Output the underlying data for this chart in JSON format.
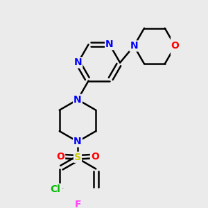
{
  "bg_color": "#ebebeb",
  "bond_color": "#000000",
  "bond_width": 1.8,
  "dbo": 0.055,
  "atom_colors": {
    "N": "#0000ff",
    "O": "#ff0000",
    "Cl": "#00bb00",
    "F": "#ff44ff",
    "S": "#cccc00"
  },
  "fs": 10,
  "fig_size": [
    3.0,
    3.0
  ],
  "dpi": 100,
  "xlim": [
    -1.4,
    1.8
  ],
  "ylim": [
    -2.5,
    2.0
  ]
}
